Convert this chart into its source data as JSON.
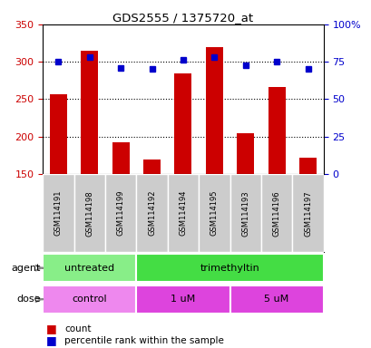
{
  "title": "GDS2555 / 1375720_at",
  "samples": [
    "GSM114191",
    "GSM114198",
    "GSM114199",
    "GSM114192",
    "GSM114194",
    "GSM114195",
    "GSM114193",
    "GSM114196",
    "GSM114197"
  ],
  "counts": [
    257,
    315,
    192,
    169,
    285,
    320,
    205,
    266,
    172
  ],
  "percentile_ranks": [
    75,
    78,
    71,
    70.5,
    76.5,
    78,
    72.5,
    75,
    70
  ],
  "count_ylim": [
    150,
    350
  ],
  "count_yticks": [
    150,
    200,
    250,
    300,
    350
  ],
  "pct_ylim": [
    0,
    100
  ],
  "pct_yticks": [
    0,
    25,
    50,
    75,
    100
  ],
  "pct_yticklabels": [
    "0",
    "25",
    "50",
    "75",
    "100%"
  ],
  "bar_color": "#cc0000",
  "dot_color": "#0000cc",
  "bar_width": 0.55,
  "agent_labels": [
    {
      "text": "untreated",
      "start": 0,
      "end": 3,
      "color": "#88ee88"
    },
    {
      "text": "trimethyltin",
      "start": 3,
      "end": 9,
      "color": "#44dd44"
    }
  ],
  "dose_labels": [
    {
      "text": "control",
      "start": 0,
      "end": 3,
      "color": "#ee88ee"
    },
    {
      "text": "1 uM",
      "start": 3,
      "end": 6,
      "color": "#dd44dd"
    },
    {
      "text": "5 uM",
      "start": 6,
      "end": 9,
      "color": "#dd44dd"
    }
  ],
  "sample_bg_color": "#cccccc",
  "background_color": "#ffffff",
  "gridline_color": "#000000",
  "count_label_color": "#cc0000",
  "pct_label_color": "#0000cc",
  "legend_count_label": "count",
  "legend_pct_label": "percentile rank within the sample",
  "agent_row_label": "agent",
  "dose_row_label": "dose",
  "gridlines_at": [
    200,
    250,
    300
  ]
}
